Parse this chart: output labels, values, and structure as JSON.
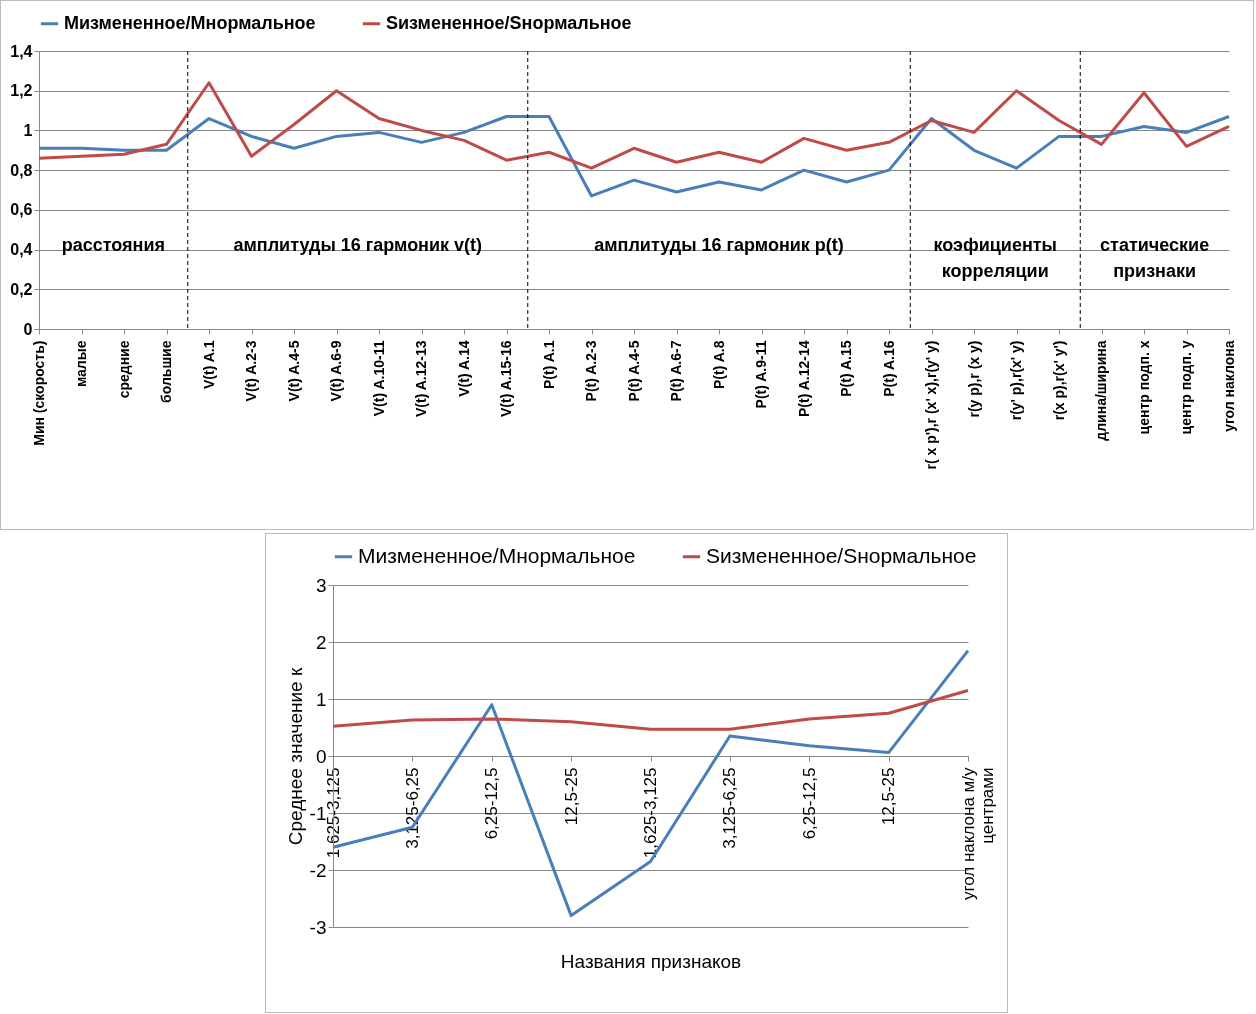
{
  "chart_data": [
    {
      "type": "line",
      "categories": [
        "Мин (скорость)",
        "малые",
        "средние",
        "большие",
        "V(t) A.1",
        "V(t) A.2-3",
        "V(t) A.4-5",
        "V(t) A.6-9",
        "V(t) A.10-11",
        "V(t) A.12-13",
        "V(t) A.14",
        "V(t) A.15-16",
        "P(t) A.1",
        "P(t) A.2-3",
        "P(t) A.4-5",
        "P(t) A.6-7",
        "P(t) A.8",
        "P(t) A.9-11",
        "P(t) A.12-14",
        "P(t) A.15",
        "P(t) A.16",
        "r( x p'),r (x' x),r(y' y)",
        "r(y p),r (x y)",
        "r(y' p),r(x' y)",
        "r(x p),r(x' y')",
        "длина/ширина",
        "центр подп. x",
        "центр подп. y",
        "угол наклона"
      ],
      "series": [
        {
          "name": "Мизмененное/Мнормальное",
          "color": "#4a7ebb",
          "values": [
            0.91,
            0.91,
            0.9,
            0.9,
            1.06,
            0.97,
            0.91,
            0.97,
            0.99,
            0.94,
            0.99,
            1.07,
            1.07,
            0.67,
            0.75,
            0.69,
            0.74,
            0.7,
            0.8,
            0.74,
            0.8,
            1.06,
            0.9,
            0.81,
            0.97,
            0.97,
            1.02,
            0.99,
            1.07
          ]
        },
        {
          "name": "Sизмененное/Sнормальное",
          "color": "#be4b48",
          "values": [
            0.86,
            0.87,
            0.88,
            0.93,
            1.24,
            0.87,
            1.03,
            1.2,
            1.06,
            1.0,
            0.95,
            0.85,
            0.89,
            0.81,
            0.91,
            0.84,
            0.89,
            0.84,
            0.96,
            0.9,
            0.94,
            1.05,
            0.99,
            1.2,
            1.05,
            0.93,
            1.19,
            0.92,
            1.02
          ]
        }
      ],
      "ylim": [
        0,
        1.4
      ],
      "yticks": [
        0,
        {
          "value": 0.2,
          "label": "0,2"
        },
        {
          "value": 0.4,
          "label": "0,4"
        },
        {
          "value": 0.6,
          "label": "0,6"
        },
        {
          "value": 0.8,
          "label": "0,8"
        },
        1,
        {
          "value": 1.2,
          "label": "1,2"
        },
        {
          "value": 1.4,
          "label": "1,4"
        }
      ],
      "grid": "y",
      "legend": "top",
      "annotations": [
        "расстояния",
        "амплитуды  16 гармоник v(t)",
        "амплитуды  16 гармоник p(t)",
        "коэфициенты\nкорреляции",
        "статические\nпризнаки"
      ]
    },
    {
      "type": "line",
      "categories": [
        "1,625-3,125",
        "3,125-6,25",
        "6,25-12,5",
        "12,5-25",
        "1,625-3,125",
        "3,125-6,25",
        "6,25-12,5",
        "12,5-25",
        "угол наклона м/у\nцентрами"
      ],
      "series": [
        {
          "name": "Мизмененное/Мнормальное",
          "color": "#4a7ebb",
          "values": [
            -1.6,
            -1.25,
            0.9,
            -2.8,
            -1.85,
            0.35,
            0.18,
            0.06,
            1.85
          ]
        },
        {
          "name": "Sизмененное/Sнормальное",
          "color": "#be4b48",
          "values": [
            0.52,
            0.63,
            0.65,
            0.6,
            0.47,
            0.47,
            0.65,
            0.75,
            1.15
          ]
        }
      ],
      "xlabel": "Названия признаков",
      "ylabel": "Среднее значение к",
      "ylim": [
        -3,
        3
      ],
      "yticks": [
        {
          "value": -3,
          "label": "-3"
        },
        {
          "value": -2,
          "label": "-2"
        },
        {
          "value": -1,
          "label": "-1"
        },
        0,
        1,
        2,
        3
      ],
      "grid": "y",
      "legend": "top"
    }
  ]
}
